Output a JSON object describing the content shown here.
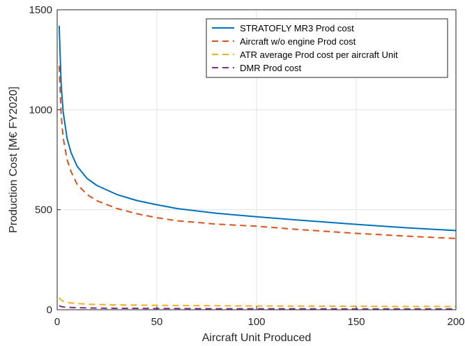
{
  "chart_data": {
    "type": "line",
    "title": "",
    "xlabel": "Aircraft Unit Produced",
    "ylabel": "Production Cost [M€ FY2020]",
    "xlim": [
      0,
      200
    ],
    "ylim": [
      0,
      1500
    ],
    "xticks": [
      0,
      50,
      100,
      150,
      200
    ],
    "yticks": [
      0,
      500,
      1000,
      1500
    ],
    "grid": true,
    "legend_position": "top-right",
    "x": [
      1,
      2,
      3,
      5,
      7,
      10,
      15,
      20,
      30,
      40,
      50,
      60,
      80,
      100,
      120,
      150,
      175,
      200
    ],
    "series": [
      {
        "name": "STRATOFLY MR3 Prod cost",
        "color": "#0072BD",
        "dash": "solid",
        "values": [
          1420,
          1130,
          990,
          855,
          785,
          718,
          656,
          621,
          576,
          546,
          525,
          506,
          482,
          465,
          449,
          427,
          410,
          396
        ]
      },
      {
        "name": "Aircraft w/o engine Prod cost",
        "color": "#D95319",
        "dash": "dashed",
        "values": [
          1220,
          980,
          860,
          750,
          690,
          628,
          576,
          545,
          506,
          480,
          460,
          445,
          428,
          418,
          402,
          382,
          368,
          356
        ]
      },
      {
        "name": "ATR average Prod cost per aircraft Unit",
        "color": "#EDB120",
        "dash": "dashed",
        "values": [
          60,
          48,
          42,
          37,
          34,
          31,
          28,
          26,
          24,
          23,
          22,
          21,
          20,
          19,
          18,
          17,
          16,
          16
        ]
      },
      {
        "name": "DMR Prod cost",
        "color": "#7E2F8E",
        "dash": "dashed",
        "values": [
          20,
          16,
          14,
          12,
          11,
          10,
          9,
          8,
          7,
          7,
          6,
          6,
          5,
          5,
          5,
          4,
          4,
          4
        ]
      }
    ]
  }
}
